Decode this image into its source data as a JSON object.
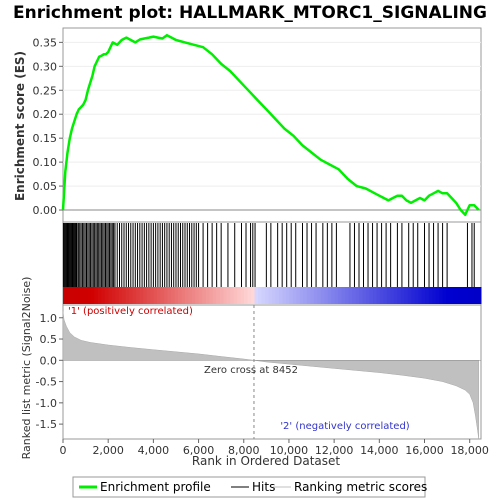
{
  "chart_data": {
    "title": "Enrichment plot: HALLMARK_MTORC1_SIGNALING",
    "es_panel": {
      "type": "line",
      "ylabel": "Enrichment score (ES)",
      "xlim": [
        0,
        18500
      ],
      "ylim": [
        -0.025,
        0.38
      ],
      "yticks": [
        0.0,
        0.05,
        0.1,
        0.15,
        0.2,
        0.25,
        0.3,
        0.35
      ],
      "ytick_labels": [
        "0.00",
        "0.05",
        "0.10",
        "0.15",
        "0.20",
        "0.25",
        "0.30",
        "0.35"
      ],
      "series": [
        {
          "name": "Enrichment profile",
          "color": "#00ee00",
          "x": [
            0,
            100,
            200,
            300,
            400,
            500,
            600,
            700,
            800,
            900,
            1000,
            1100,
            1200,
            1300,
            1400,
            1500,
            1600,
            1700,
            1800,
            1900,
            2000,
            2200,
            2400,
            2600,
            2800,
            3000,
            3200,
            3400,
            3600,
            3800,
            4000,
            4200,
            4400,
            4600,
            4800,
            5000,
            5400,
            5800,
            6200,
            6600,
            7000,
            7400,
            7800,
            8200,
            8600,
            9000,
            9400,
            9800,
            10200,
            10600,
            11000,
            11400,
            11800,
            12200,
            12600,
            13000,
            13400,
            13800,
            14000,
            14200,
            14400,
            14600,
            14800,
            15000,
            15200,
            15400,
            15600,
            15800,
            16000,
            16200,
            16400,
            16600,
            16800,
            17000,
            17200,
            17400,
            17600,
            17800,
            17900,
            18000,
            18200,
            18400
          ],
          "values": [
            0.0,
            0.08,
            0.12,
            0.15,
            0.17,
            0.185,
            0.2,
            0.21,
            0.215,
            0.22,
            0.23,
            0.25,
            0.265,
            0.28,
            0.3,
            0.31,
            0.32,
            0.322,
            0.325,
            0.325,
            0.33,
            0.35,
            0.345,
            0.355,
            0.36,
            0.355,
            0.35,
            0.356,
            0.358,
            0.36,
            0.362,
            0.36,
            0.358,
            0.365,
            0.36,
            0.355,
            0.35,
            0.345,
            0.34,
            0.325,
            0.305,
            0.29,
            0.27,
            0.25,
            0.23,
            0.21,
            0.19,
            0.17,
            0.155,
            0.135,
            0.12,
            0.105,
            0.095,
            0.085,
            0.065,
            0.05,
            0.045,
            0.035,
            0.03,
            0.025,
            0.02,
            0.025,
            0.03,
            0.03,
            0.02,
            0.015,
            0.02,
            0.025,
            0.02,
            0.03,
            0.035,
            0.04,
            0.035,
            0.035,
            0.025,
            0.015,
            0.0,
            -0.01,
            0.0,
            0.01,
            0.01,
            0.0
          ]
        }
      ]
    },
    "hits_panel": {
      "positions": [
        20,
        60,
        100,
        140,
        180,
        220,
        260,
        300,
        340,
        380,
        420,
        460,
        500,
        540,
        580,
        620,
        680,
        740,
        800,
        860,
        920,
        980,
        1040,
        1100,
        1160,
        1220,
        1280,
        1340,
        1400,
        1460,
        1520,
        1580,
        1640,
        1700,
        1760,
        1820,
        1880,
        1940,
        2000,
        2060,
        2120,
        2180,
        2240,
        2300,
        2400,
        2500,
        2600,
        2700,
        2800,
        2900,
        3000,
        3100,
        3200,
        3300,
        3400,
        3500,
        3600,
        3700,
        3800,
        3900,
        4000,
        4100,
        4200,
        4300,
        4400,
        4500,
        4600,
        4700,
        4800,
        4900,
        5000,
        5100,
        5200,
        5300,
        5400,
        5500,
        5600,
        5700,
        5800,
        5900,
        6000,
        6200,
        6400,
        6600,
        6800,
        7000,
        7300,
        7600,
        7900,
        8100,
        8300,
        8400,
        8500,
        9000,
        9200,
        9500,
        9700,
        9900,
        10100,
        10300,
        10600,
        10800,
        11000,
        11200,
        11500,
        11700,
        11900,
        12100,
        12700,
        12900,
        13100,
        13300,
        13500,
        13700,
        13900,
        14100,
        14300,
        14500,
        14800,
        15000,
        15300,
        15500,
        15700,
        16000,
        16200,
        16400,
        16600,
        16800,
        17000,
        17900,
        18100,
        18200
      ]
    },
    "metric_panel": {
      "type": "area",
      "ylabel": "Ranked list metric (Signal2Noise)",
      "xlabel": "Rank in Ordered Dataset",
      "ylim": [
        -1.85,
        1.3
      ],
      "yticks": [
        -1.5,
        -1.0,
        -0.5,
        0.0,
        0.5,
        1.0
      ],
      "ytick_labels": [
        "-1.5",
        "-1.0",
        "-0.5",
        "0.0",
        "0.5",
        "1.0"
      ],
      "xticks": [
        0,
        2000,
        4000,
        6000,
        8000,
        10000,
        12000,
        14000,
        16000,
        18000
      ],
      "xtick_labels": [
        "0",
        "2,000",
        "4,000",
        "6,000",
        "8,000",
        "10,000",
        "12,000",
        "14,000",
        "16,000",
        "18,000"
      ],
      "x": [
        0,
        50,
        150,
        300,
        500,
        800,
        1200,
        2000,
        3000,
        4000,
        5000,
        6000,
        7000,
        8000,
        8452,
        9000,
        10000,
        11000,
        12000,
        13000,
        14000,
        15000,
        16000,
        16800,
        17400,
        17800,
        18000,
        18150,
        18250,
        18350,
        18400
      ],
      "values": [
        1.15,
        0.95,
        0.8,
        0.65,
        0.55,
        0.47,
        0.42,
        0.36,
        0.3,
        0.25,
        0.2,
        0.15,
        0.09,
        0.03,
        0.0,
        -0.04,
        -0.09,
        -0.14,
        -0.19,
        -0.24,
        -0.29,
        -0.35,
        -0.42,
        -0.5,
        -0.6,
        -0.7,
        -0.8,
        -1.0,
        -1.3,
        -1.65,
        -1.85
      ],
      "fill_color": "#c0c0c0",
      "zero_cross_label": "Zero cross at 8452",
      "zero_cross": 8452,
      "positive_label": "'1' (positively correlated)",
      "negative_label": "'2' (negatively correlated)",
      "positive_color": "#cc0000",
      "negative_color": "#3333cc"
    },
    "legend": {
      "items": [
        {
          "label": "Enrichment profile",
          "color": "#00ee00"
        },
        {
          "label": "Hits",
          "color": "#000000"
        },
        {
          "label": "Ranking metric scores",
          "color": "#c0c0c0"
        }
      ]
    }
  }
}
